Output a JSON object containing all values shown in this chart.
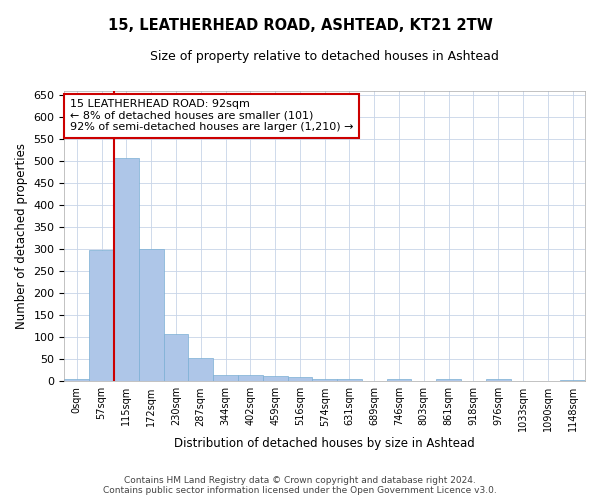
{
  "title_line1": "15, LEATHERHEAD ROAD, ASHTEAD, KT21 2TW",
  "title_line2": "Size of property relative to detached houses in Ashtead",
  "xlabel": "Distribution of detached houses by size in Ashtead",
  "ylabel": "Number of detached properties",
  "bar_color": "#aec6e8",
  "bar_edge_color": "#7bafd4",
  "grid_color": "#c8d4e8",
  "annotation_box_color": "#cc0000",
  "vline_color": "#cc0000",
  "vline_x": 1.5,
  "annotation_text": "15 LEATHERHEAD ROAD: 92sqm\n← 8% of detached houses are smaller (101)\n92% of semi-detached houses are larger (1,210) →",
  "footer_line1": "Contains HM Land Registry data © Crown copyright and database right 2024.",
  "footer_line2": "Contains public sector information licensed under the Open Government Licence v3.0.",
  "bin_labels": [
    "0sqm",
    "57sqm",
    "115sqm",
    "172sqm",
    "230sqm",
    "287sqm",
    "344sqm",
    "402sqm",
    "459sqm",
    "516sqm",
    "574sqm",
    "631sqm",
    "689sqm",
    "746sqm",
    "803sqm",
    "861sqm",
    "918sqm",
    "976sqm",
    "1033sqm",
    "1090sqm",
    "1148sqm"
  ],
  "bar_heights": [
    5,
    297,
    507,
    301,
    107,
    53,
    14,
    15,
    13,
    9,
    6,
    5,
    0,
    5,
    0,
    5,
    0,
    5,
    0,
    0,
    4
  ],
  "ylim": [
    0,
    660
  ],
  "yticks": [
    0,
    50,
    100,
    150,
    200,
    250,
    300,
    350,
    400,
    450,
    500,
    550,
    600,
    650
  ],
  "figsize": [
    6.0,
    5.0
  ],
  "dpi": 100
}
